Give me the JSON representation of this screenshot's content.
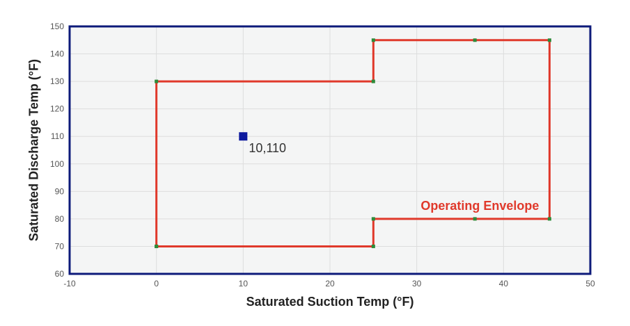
{
  "chart_data": {
    "type": "line",
    "xlabel": "Saturated Suction Temp (°F)",
    "ylabel": "Saturated Discharge Temp (°F)",
    "xlim": [
      -10,
      50
    ],
    "ylim": [
      60,
      150
    ],
    "xticks": [
      -10,
      0,
      10,
      20,
      30,
      40,
      50
    ],
    "yticks": [
      60,
      70,
      80,
      90,
      100,
      110,
      120,
      130,
      140,
      150
    ],
    "grid": true,
    "series": [
      {
        "name": "Operating Envelope",
        "color": "#e0392b",
        "marker_color": "#2e8b3a",
        "x": [
          0,
          25,
          25,
          45.3,
          45.3,
          25,
          25,
          0,
          0,
          36.7,
          36.7
        ],
        "y": [
          70,
          70,
          80,
          80,
          145,
          145,
          130,
          130,
          70,
          80,
          145
        ],
        "path_x": [
          0,
          25,
          25,
          45.3,
          45.3,
          25,
          25,
          0,
          0
        ],
        "path_y": [
          70,
          70,
          80,
          80,
          145,
          145,
          130,
          130,
          70
        ]
      }
    ],
    "point": {
      "x": 10,
      "y": 110,
      "label": "10,110",
      "color": "#0d1a9e"
    },
    "colors": {
      "frame": "#0d1a7a",
      "plot_bg": "#f4f5f5",
      "grid": "#dddddd"
    }
  }
}
